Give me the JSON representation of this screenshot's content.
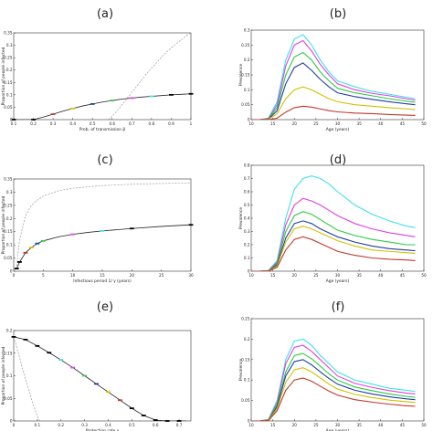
{
  "chart_data": [
    {
      "id": "a",
      "panel_label": "(a)",
      "type": "line",
      "xlabel": "Prob. of transmission  β",
      "ylabel": "Proportion of people infected",
      "xlim": [
        0.1,
        1.0
      ],
      "ylim": [
        0,
        0.35
      ],
      "xticks": [
        "0.1",
        "0.2",
        "0.3",
        "0.4",
        "0.5",
        "0.6",
        "0.7",
        "0.8",
        "0.9",
        "1"
      ],
      "xtick_values": [
        0.1,
        0.2,
        0.3,
        0.4,
        0.5,
        0.6,
        0.7,
        0.8,
        0.9,
        1.0
      ],
      "yticks": [
        "0",
        "0.05",
        "0.1",
        "0.15",
        "0.2",
        "0.25",
        "0.3",
        "0.35"
      ],
      "ytick_values": [
        0,
        0.05,
        0.1,
        0.15,
        0.2,
        0.25,
        0.3,
        0.35
      ],
      "main_curve": {
        "x": [
          0.1,
          0.15,
          0.2,
          0.25,
          0.3,
          0.35,
          0.4,
          0.45,
          0.5,
          0.55,
          0.6,
          0.65,
          0.7,
          0.75,
          0.8,
          0.85,
          0.9,
          0.95,
          1.0
        ],
        "y": [
          0,
          0,
          0,
          0.01,
          0.022,
          0.034,
          0.045,
          0.055,
          0.063,
          0.071,
          0.077,
          0.083,
          0.087,
          0.091,
          0.094,
          0.097,
          0.1,
          0.102,
          0.104
        ]
      },
      "dashed_curve": {
        "x": [
          0.58,
          0.62,
          0.66,
          0.7,
          0.74,
          0.78,
          0.82,
          0.86,
          0.9,
          0.94,
          0.98,
          1.0
        ],
        "y": [
          0,
          0.03,
          0.07,
          0.11,
          0.15,
          0.19,
          0.225,
          0.26,
          0.29,
          0.315,
          0.34,
          0.35
        ]
      },
      "markers": [
        {
          "x": 0.1,
          "y": 0,
          "color": "#000000"
        },
        {
          "x": 0.2,
          "y": 0,
          "color": "#000000"
        },
        {
          "x": 0.3,
          "y": 0.022,
          "color": "#c0392b"
        },
        {
          "x": 0.4,
          "y": 0.045,
          "color": "#d4c000"
        },
        {
          "x": 0.5,
          "y": 0.063,
          "color": "#1f3fa5"
        },
        {
          "x": 0.6,
          "y": 0.077,
          "color": "#2ecc40"
        },
        {
          "x": 0.7,
          "y": 0.087,
          "color": "#e040e0"
        },
        {
          "x": 0.8,
          "y": 0.094,
          "color": "#40e0f0"
        },
        {
          "x": 0.9,
          "y": 0.1,
          "color": "#000000"
        },
        {
          "x": 1.0,
          "y": 0.104,
          "color": "#000000"
        }
      ]
    },
    {
      "id": "b",
      "panel_label": "(b)",
      "type": "line",
      "xlabel": "Age (years)",
      "ylabel": "Prevalence",
      "xlim": [
        10,
        50
      ],
      "ylim": [
        0,
        0.3
      ],
      "xticks": [
        "10",
        "15",
        "20",
        "25",
        "30",
        "35",
        "40",
        "45",
        "50"
      ],
      "xtick_values": [
        10,
        15,
        20,
        25,
        30,
        35,
        40,
        45,
        50
      ],
      "yticks": [
        "0",
        "0.05",
        "0.1",
        "0.15",
        "0.2",
        "0.25",
        "0.3"
      ],
      "ytick_values": [
        0,
        0.05,
        0.1,
        0.15,
        0.2,
        0.25,
        0.3
      ],
      "x": [
        10,
        12,
        14,
        16,
        18,
        20,
        22,
        24,
        26,
        28,
        30,
        34,
        38,
        42,
        46,
        48
      ],
      "series": [
        {
          "color": "#40e0f0",
          "values": [
            0,
            0,
            0.005,
            0.06,
            0.2,
            0.27,
            0.285,
            0.25,
            0.2,
            0.16,
            0.13,
            0.11,
            0.095,
            0.085,
            0.075,
            0.07
          ]
        },
        {
          "color": "#e040e0",
          "values": [
            0,
            0,
            0.004,
            0.05,
            0.18,
            0.25,
            0.265,
            0.23,
            0.185,
            0.15,
            0.12,
            0.1,
            0.088,
            0.08,
            0.07,
            0.065
          ]
        },
        {
          "color": "#2ecc40",
          "values": [
            0,
            0,
            0.003,
            0.04,
            0.15,
            0.21,
            0.225,
            0.2,
            0.16,
            0.13,
            0.105,
            0.09,
            0.08,
            0.07,
            0.062,
            0.058
          ]
        },
        {
          "color": "#1f3fa5",
          "values": [
            0,
            0,
            0.002,
            0.03,
            0.12,
            0.175,
            0.19,
            0.165,
            0.135,
            0.11,
            0.09,
            0.077,
            0.068,
            0.06,
            0.053,
            0.05
          ]
        },
        {
          "color": "#d4c000",
          "values": [
            0,
            0,
            0.001,
            0.02,
            0.07,
            0.1,
            0.11,
            0.1,
            0.085,
            0.07,
            0.06,
            0.05,
            0.045,
            0.04,
            0.036,
            0.034
          ]
        },
        {
          "color": "#c0392b",
          "values": [
            0,
            0,
            0,
            0.005,
            0.025,
            0.04,
            0.045,
            0.042,
            0.036,
            0.03,
            0.026,
            0.022,
            0.02,
            0.017,
            0.015,
            0.014
          ]
        }
      ]
    },
    {
      "id": "c",
      "panel_label": "(c)",
      "type": "line",
      "xlabel": "Infectious period 1/ γ  (years)",
      "ylabel": "Proportion of people infected",
      "xlim": [
        0,
        30
      ],
      "ylim": [
        0,
        0.35
      ],
      "xticks": [
        "0",
        "5",
        "10",
        "15",
        "20",
        "25",
        "30"
      ],
      "xtick_values": [
        0,
        5,
        10,
        15,
        20,
        25,
        30
      ],
      "yticks": [
        "0",
        "0.05",
        "0.1",
        "0.15",
        "0.2",
        "0.25",
        "0.3",
        "0.35"
      ],
      "ytick_values": [
        0,
        0.05,
        0.1,
        0.15,
        0.2,
        0.25,
        0.3,
        0.35
      ],
      "main_curve": {
        "x": [
          0.5,
          1,
          2,
          3,
          4,
          5,
          7.5,
          10,
          12.5,
          15,
          20,
          25,
          30
        ],
        "y": [
          0.01,
          0.035,
          0.07,
          0.09,
          0.105,
          0.115,
          0.13,
          0.14,
          0.147,
          0.153,
          0.162,
          0.17,
          0.176
        ]
      },
      "dashed_curve": {
        "x": [
          0.5,
          1,
          2,
          3,
          4,
          5,
          7.5,
          10,
          15,
          20,
          25,
          30
        ],
        "y": [
          0.02,
          0.12,
          0.21,
          0.25,
          0.27,
          0.285,
          0.305,
          0.315,
          0.325,
          0.33,
          0.333,
          0.335
        ]
      },
      "markers": [
        {
          "x": 0.5,
          "y": 0.01,
          "color": "#000000"
        },
        {
          "x": 1,
          "y": 0.035,
          "color": "#000000"
        },
        {
          "x": 2,
          "y": 0.07,
          "color": "#c0392b"
        },
        {
          "x": 3,
          "y": 0.09,
          "color": "#d4c000"
        },
        {
          "x": 4,
          "y": 0.105,
          "color": "#1f3fa5"
        },
        {
          "x": 5,
          "y": 0.115,
          "color": "#2ecc40"
        },
        {
          "x": 10,
          "y": 0.14,
          "color": "#e040e0"
        },
        {
          "x": 15,
          "y": 0.153,
          "color": "#40e0f0"
        },
        {
          "x": 20,
          "y": 0.162,
          "color": "#000000"
        },
        {
          "x": 30,
          "y": 0.176,
          "color": "#000000"
        }
      ]
    },
    {
      "id": "d",
      "panel_label": "(d)",
      "type": "line",
      "xlabel": "Age (years)",
      "ylabel": "Prevalence",
      "xlim": [
        10,
        50
      ],
      "ylim": [
        0,
        0.8
      ],
      "xticks": [
        "10",
        "15",
        "20",
        "25",
        "30",
        "35",
        "40",
        "45",
        "50"
      ],
      "xtick_values": [
        10,
        15,
        20,
        25,
        30,
        35,
        40,
        45,
        50
      ],
      "yticks": [
        "0",
        "0.1",
        "0.2",
        "0.3",
        "0.4",
        "0.5",
        "0.6",
        "0.7",
        "0.8"
      ],
      "ytick_values": [
        0,
        0.1,
        0.2,
        0.3,
        0.4,
        0.5,
        0.6,
        0.7,
        0.8
      ],
      "x": [
        10,
        12,
        14,
        16,
        18,
        20,
        22,
        24,
        26,
        28,
        30,
        34,
        38,
        42,
        46,
        48
      ],
      "series": [
        {
          "color": "#40e0f0",
          "values": [
            0,
            0,
            0.005,
            0.08,
            0.4,
            0.62,
            0.7,
            0.72,
            0.7,
            0.66,
            0.6,
            0.5,
            0.43,
            0.38,
            0.34,
            0.33
          ]
        },
        {
          "color": "#e040e0",
          "values": [
            0,
            0,
            0.004,
            0.07,
            0.35,
            0.5,
            0.55,
            0.53,
            0.5,
            0.46,
            0.42,
            0.36,
            0.32,
            0.29,
            0.27,
            0.26
          ]
        },
        {
          "color": "#2ecc40",
          "values": [
            0,
            0,
            0.003,
            0.06,
            0.3,
            0.42,
            0.45,
            0.43,
            0.39,
            0.35,
            0.31,
            0.27,
            0.24,
            0.22,
            0.2,
            0.2
          ]
        },
        {
          "color": "#1f3fa5",
          "values": [
            0,
            0,
            0.002,
            0.05,
            0.25,
            0.36,
            0.38,
            0.36,
            0.32,
            0.29,
            0.26,
            0.22,
            0.19,
            0.17,
            0.16,
            0.155
          ]
        },
        {
          "color": "#d4c000",
          "values": [
            0,
            0,
            0.002,
            0.04,
            0.22,
            0.32,
            0.34,
            0.32,
            0.29,
            0.26,
            0.23,
            0.19,
            0.16,
            0.15,
            0.14,
            0.135
          ]
        },
        {
          "color": "#c0392b",
          "values": [
            0,
            0,
            0.001,
            0.03,
            0.16,
            0.24,
            0.26,
            0.24,
            0.21,
            0.18,
            0.15,
            0.12,
            0.1,
            0.09,
            0.085,
            0.08
          ]
        }
      ]
    },
    {
      "id": "e",
      "panel_label": "(e)",
      "type": "line",
      "xlabel": "Protection rate  ν",
      "ylabel": "Proportion of people infected",
      "xlim": [
        0,
        0.75
      ],
      "ylim": [
        0,
        0.2
      ],
      "xticks": [
        "0",
        "0.1",
        "0.2",
        "0.3",
        "0.4",
        "0.5",
        "0.6",
        "0.7"
      ],
      "xtick_values": [
        0,
        0.1,
        0.2,
        0.3,
        0.4,
        0.5,
        0.6,
        0.7
      ],
      "yticks": [
        "0",
        "0.05",
        "0.1",
        "0.15",
        "0.2"
      ],
      "ytick_values": [
        0,
        0.05,
        0.1,
        0.15,
        0.2
      ],
      "main_curve": {
        "x": [
          0,
          0.05,
          0.1,
          0.15,
          0.2,
          0.25,
          0.3,
          0.35,
          0.4,
          0.45,
          0.5,
          0.55,
          0.6,
          0.65,
          0.7,
          0.73
        ],
        "y": [
          0.186,
          0.18,
          0.166,
          0.151,
          0.135,
          0.118,
          0.1,
          0.082,
          0.064,
          0.046,
          0.028,
          0.012,
          0.002,
          0,
          0,
          0
        ]
      },
      "dashed_curve": {
        "x": [
          0,
          0.02,
          0.04,
          0.06,
          0.08,
          0.1,
          0.11
        ],
        "y": [
          0.186,
          0.15,
          0.11,
          0.075,
          0.04,
          0.01,
          0
        ]
      },
      "markers": [
        {
          "x": 0,
          "y": 0.186,
          "color": "#000000"
        },
        {
          "x": 0.05,
          "y": 0.18,
          "color": "#000000"
        },
        {
          "x": 0.1,
          "y": 0.166,
          "color": "#000000"
        },
        {
          "x": 0.15,
          "y": 0.151,
          "color": "#000000"
        },
        {
          "x": 0.2,
          "y": 0.135,
          "color": "#40e0f0"
        },
        {
          "x": 0.25,
          "y": 0.118,
          "color": "#e040e0"
        },
        {
          "x": 0.3,
          "y": 0.1,
          "color": "#2ecc40"
        },
        {
          "x": 0.35,
          "y": 0.082,
          "color": "#1f3fa5"
        },
        {
          "x": 0.4,
          "y": 0.064,
          "color": "#d4c000"
        },
        {
          "x": 0.45,
          "y": 0.046,
          "color": "#c0392b"
        },
        {
          "x": 0.5,
          "y": 0.028,
          "color": "#000000"
        },
        {
          "x": 0.55,
          "y": 0.012,
          "color": "#000000"
        },
        {
          "x": 0.6,
          "y": 0.002,
          "color": "#000000"
        },
        {
          "x": 0.65,
          "y": 0,
          "color": "#000000"
        },
        {
          "x": 0.7,
          "y": 0,
          "color": "#000000"
        }
      ]
    },
    {
      "id": "f",
      "panel_label": "(f)",
      "type": "line",
      "xlabel": "Age (years)",
      "ylabel": "Prevalence",
      "xlim": [
        10,
        50
      ],
      "ylim": [
        0,
        0.25
      ],
      "xticks": [
        "10",
        "15",
        "20",
        "25",
        "30",
        "35",
        "40",
        "45",
        "50"
      ],
      "xtick_values": [
        10,
        15,
        20,
        25,
        30,
        35,
        40,
        45,
        50
      ],
      "yticks": [
        "0",
        "0.05",
        "0.1",
        "0.15",
        "0.2",
        "0.25"
      ],
      "ytick_values": [
        0,
        0.05,
        0.1,
        0.15,
        0.2,
        0.25
      ],
      "x": [
        10,
        12,
        14,
        16,
        18,
        20,
        22,
        24,
        26,
        28,
        30,
        34,
        38,
        42,
        46,
        48
      ],
      "series": [
        {
          "color": "#40e0f0",
          "values": [
            0,
            0,
            0.004,
            0.05,
            0.15,
            0.195,
            0.2,
            0.185,
            0.16,
            0.14,
            0.12,
            0.1,
            0.09,
            0.08,
            0.075,
            0.072
          ]
        },
        {
          "color": "#e040e0",
          "values": [
            0,
            0,
            0.003,
            0.045,
            0.14,
            0.18,
            0.185,
            0.17,
            0.15,
            0.13,
            0.11,
            0.092,
            0.082,
            0.074,
            0.068,
            0.066
          ]
        },
        {
          "color": "#2ecc40",
          "values": [
            0,
            0,
            0.003,
            0.04,
            0.12,
            0.16,
            0.165,
            0.152,
            0.134,
            0.115,
            0.1,
            0.083,
            0.074,
            0.066,
            0.06,
            0.058
          ]
        },
        {
          "color": "#1f3fa5",
          "values": [
            0,
            0,
            0.002,
            0.035,
            0.11,
            0.145,
            0.15,
            0.137,
            0.12,
            0.104,
            0.09,
            0.075,
            0.066,
            0.059,
            0.054,
            0.052
          ]
        },
        {
          "color": "#d4c000",
          "values": [
            0,
            0,
            0.002,
            0.03,
            0.095,
            0.125,
            0.13,
            0.12,
            0.105,
            0.09,
            0.078,
            0.065,
            0.057,
            0.051,
            0.047,
            0.045
          ]
        },
        {
          "color": "#c0392b",
          "values": [
            0,
            0,
            0.001,
            0.025,
            0.075,
            0.1,
            0.105,
            0.097,
            0.085,
            0.073,
            0.063,
            0.052,
            0.046,
            0.041,
            0.037,
            0.036
          ]
        }
      ]
    }
  ]
}
